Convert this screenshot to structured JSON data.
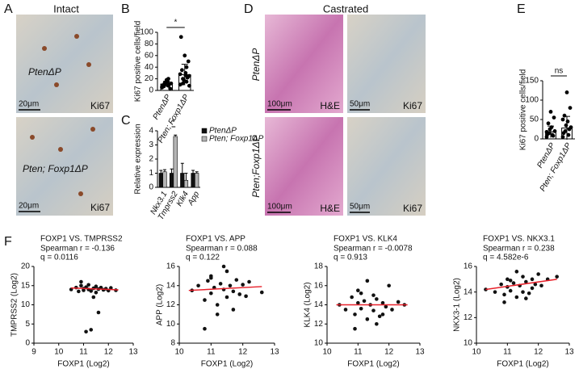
{
  "figure": {
    "panel_labels": [
      "A",
      "B",
      "C",
      "D",
      "E",
      "F"
    ],
    "A": {
      "header": "Intact",
      "images": [
        {
          "genotype": "PtenΔP",
          "stain": "Ki67",
          "scale": "20μm"
        },
        {
          "genotype": "Pten; Foxp1ΔP",
          "stain": "Ki67",
          "scale": "20μm"
        }
      ]
    },
    "D": {
      "header": "Castrated",
      "rows": [
        "PtenΔP",
        "Pten;Foxp1ΔP"
      ],
      "images": [
        {
          "stain": "H&E",
          "scale": "100μm"
        },
        {
          "stain": "Ki67",
          "scale": "50μm"
        },
        {
          "stain": "H&E",
          "scale": "100μm"
        },
        {
          "stain": "Ki67",
          "scale": "50μm"
        }
      ]
    }
  },
  "chart_data": [
    {
      "type": "dot",
      "ylabel": "Ki67 positive cells/field",
      "categories": [
        "PtenΔP",
        "Pten; Foxp1ΔP"
      ],
      "values": [
        11,
        27
      ],
      "errors": [
        5,
        18
      ],
      "points": [
        [
          5,
          8,
          10,
          12,
          15,
          7,
          3,
          18,
          9,
          11,
          14,
          6,
          20,
          13
        ],
        [
          10,
          15,
          20,
          25,
          30,
          35,
          50,
          60,
          92,
          22,
          18,
          28,
          40,
          12,
          8,
          26
        ]
      ],
      "ylim": [
        0,
        100
      ],
      "yticks": [
        0,
        20,
        40,
        60,
        80,
        100
      ],
      "significance": "*",
      "color": "#000000"
    },
    {
      "type": "bar",
      "ylabel": "Relative expression",
      "categories": [
        "Nkx3.1",
        "Tmprss2",
        "Klk4",
        "App"
      ],
      "series": [
        {
          "name": "PtenΔP",
          "color": "#111111",
          "values": [
            1,
            1,
            1,
            1
          ],
          "errors": [
            0.2,
            0.3,
            0.7,
            0.2
          ]
        },
        {
          "name": "Pten; Foxp1ΔP",
          "color": "#b5b5b5",
          "values": [
            1.1,
            3.6,
            0.5,
            1.0
          ],
          "errors": [
            0.15,
            0.1,
            0.5,
            0.1
          ]
        }
      ],
      "ylim": [
        0,
        4
      ],
      "yticks": [
        0,
        1,
        2,
        3,
        4
      ],
      "significance": "*"
    },
    {
      "type": "dot",
      "ylabel": "Ki67 positive cells/field",
      "categories": [
        "PtenΔP",
        "Pten; Foxp1ΔP"
      ],
      "values": [
        18,
        28
      ],
      "errors": [
        15,
        30
      ],
      "points": [
        [
          5,
          10,
          15,
          20,
          30,
          40,
          55,
          70,
          12,
          8,
          25,
          18
        ],
        [
          5,
          10,
          20,
          30,
          45,
          60,
          80,
          120,
          15,
          25,
          35,
          50
        ]
      ],
      "ylim": [
        0,
        150
      ],
      "yticks": [
        0,
        50,
        100,
        150
      ],
      "significance": "ns",
      "color": "#000000"
    },
    {
      "type": "scatter",
      "title": "FOXP1 VS. TMPRSS2",
      "stats": [
        "Spearman r = -0.136",
        "q = 0.0116"
      ],
      "xlabel": "FOXP1 (Log2)",
      "ylabel": "TMPRSS2 (Log2)",
      "x": [
        10.5,
        10.7,
        10.8,
        10.9,
        11,
        11,
        11.1,
        11.2,
        11.2,
        11.3,
        11.4,
        11.5,
        11.5,
        11.6,
        11.7,
        11.8,
        11.9,
        12,
        12.1,
        12.3,
        11.1,
        11.3,
        11.6,
        10.9,
        11.4
      ],
      "y": [
        14,
        14.5,
        13.5,
        15,
        14.2,
        13.8,
        14.6,
        14,
        15.2,
        13.6,
        14.3,
        14.8,
        13.2,
        14.1,
        14.5,
        13.9,
        14.2,
        13.7,
        14.4,
        13.8,
        3,
        3.5,
        8,
        16,
        12
      ],
      "fit_x": [
        10.5,
        12.4
      ],
      "fit_y": [
        14.4,
        13.9
      ],
      "xlim": [
        9,
        13
      ],
      "xticks": [
        9,
        10,
        11,
        12,
        13
      ],
      "ylim": [
        0,
        20
      ],
      "yticks": [
        0,
        5,
        10,
        15,
        20
      ],
      "color": "#111111",
      "fit_color": "#e8202a"
    },
    {
      "type": "scatter",
      "title": "FOXP1 VS. APP",
      "stats": [
        "Spearman r = 0.088",
        "q = 0.122"
      ],
      "xlabel": "FOXP1 (Log2)",
      "ylabel": "APP (Log2)",
      "x": [
        10.4,
        10.6,
        10.8,
        10.9,
        11,
        11,
        11.1,
        11.2,
        11.3,
        11.4,
        11.5,
        11.5,
        11.6,
        11.7,
        11.8,
        11.9,
        12,
        12.1,
        12.2,
        12.6,
        10.8,
        11.2,
        11.4,
        11.7,
        11.0
      ],
      "y": [
        13.5,
        14,
        12.5,
        14.5,
        13.2,
        15,
        13.8,
        12,
        14.2,
        13.6,
        15.5,
        12.8,
        14,
        13.4,
        14.6,
        13.1,
        14.1,
        12.9,
        14.4,
        13.3,
        9.5,
        11,
        16,
        11.5,
        14.8
      ],
      "fit_x": [
        10.3,
        12.6
      ],
      "fit_y": [
        13.5,
        13.9
      ],
      "xlim": [
        10,
        13
      ],
      "xticks": [
        10,
        11,
        12,
        13
      ],
      "ylim": [
        8,
        16
      ],
      "yticks": [
        8,
        10,
        12,
        14,
        16
      ],
      "color": "#111111",
      "fit_color": "#e8202a"
    },
    {
      "type": "scatter",
      "title": "FOXP1 VS. KLK4",
      "stats": [
        "Spearman r = -0.0078",
        "q = 0.913"
      ],
      "xlabel": "FOXP1 (Log2)",
      "ylabel": "KLK4 (Log2)",
      "x": [
        10.4,
        10.6,
        10.8,
        10.9,
        11,
        11,
        11.1,
        11.2,
        11.3,
        11.4,
        11.5,
        11.5,
        11.6,
        11.7,
        11.8,
        11.9,
        12,
        12.1,
        12.3,
        12.5,
        10.9,
        11.3,
        11.6,
        11.1,
        11.8
      ],
      "y": [
        14,
        13.5,
        14.8,
        13,
        14.2,
        15.5,
        13.6,
        14.4,
        12.5,
        14,
        15,
        13.4,
        14.6,
        12.8,
        14.2,
        13.8,
        16,
        13.5,
        14.3,
        14,
        11.5,
        16.5,
        12,
        15.2,
        13
      ],
      "fit_x": [
        10.3,
        12.6
      ],
      "fit_y": [
        14,
        14
      ],
      "xlim": [
        10,
        13
      ],
      "xticks": [
        10,
        11,
        12,
        13
      ],
      "ylim": [
        10,
        18
      ],
      "yticks": [
        10,
        12,
        14,
        16,
        18
      ],
      "color": "#111111",
      "fit_color": "#e8202a"
    },
    {
      "type": "scatter",
      "title": "FOXP1 VS. NKX3.1",
      "stats": [
        "Spearman r = 0.238",
        "q = 4.582e-6"
      ],
      "xlabel": "FOXP1 (Log2)",
      "ylabel": "NKX3-1 (Log2)",
      "x": [
        10.3,
        10.6,
        10.8,
        10.9,
        11,
        11,
        11.1,
        11.2,
        11.3,
        11.4,
        11.5,
        11.5,
        11.6,
        11.7,
        11.8,
        11.9,
        12,
        12.1,
        12.3,
        12.6,
        10.9,
        11.3,
        11.6,
        11.1,
        11.8
      ],
      "y": [
        14.2,
        14,
        14.6,
        13.8,
        14.4,
        15,
        14.1,
        14.7,
        13.6,
        14.5,
        15.2,
        14,
        14.8,
        13.9,
        15,
        14.6,
        15.4,
        14.5,
        15,
        15.2,
        13.2,
        15.6,
        13.5,
        14.9,
        14.3
      ],
      "fit_x": [
        10.3,
        12.6
      ],
      "fit_y": [
        14.2,
        15
      ],
      "xlim": [
        10,
        13
      ],
      "xticks": [
        10,
        11,
        12,
        13
      ],
      "ylim": [
        10,
        16
      ],
      "yticks": [
        10,
        12,
        14,
        16
      ],
      "color": "#111111",
      "fit_color": "#e8202a"
    }
  ]
}
